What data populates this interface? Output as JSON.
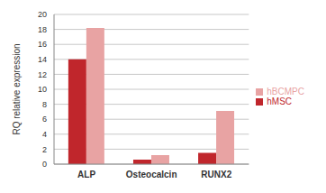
{
  "chart_data": {
    "type": "bar",
    "y_label": "RQ relative expression",
    "categories": [
      "ALP",
      "Osteocalcin",
      "RUNX2"
    ],
    "series": [
      {
        "name": "hMSC",
        "color": "#c0262c",
        "values": [
          14,
          0.6,
          1.5
        ]
      },
      {
        "name": "hBCMPC",
        "color": "#e8a3a3",
        "values": [
          18.2,
          1.2,
          7.1
        ]
      }
    ],
    "ylim": [
      0,
      20
    ],
    "yticks": [
      0,
      2,
      4,
      6,
      8,
      10,
      12,
      14,
      16,
      18,
      20
    ],
    "grid": true,
    "legend": "right"
  }
}
